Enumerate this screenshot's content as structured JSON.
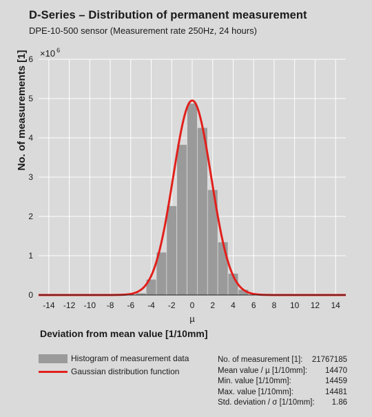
{
  "title": "D-Series – Distribution of permanent measurement",
  "subtitle": "DPE-10-500 sensor (Measurement rate 250Hz, 24 hours)",
  "chart_data": {
    "type": "bar",
    "title": "D-Series – Distribution of permanent measurement",
    "subtitle": "DPE-10-500 sensor (Measurement rate 250Hz, 24 hours)",
    "xlabel": "Deviation from mean value [1/10mm]",
    "xlabel_symbol": "µ",
    "ylabel": "No. of measurements [1]",
    "y_multiplier_base": "×10",
    "y_multiplier_exp": "6",
    "xlim": [
      -15,
      15
    ],
    "ylim": [
      0,
      6
    ],
    "x_ticks": [
      "-14",
      "-12",
      "-10",
      "-8",
      "-6",
      "-4",
      "-2",
      "0",
      "2",
      "4",
      "6",
      "8",
      "10",
      "12",
      "14"
    ],
    "y_ticks": [
      "0",
      "1",
      "2",
      "3",
      "4",
      "5",
      "6"
    ],
    "grid": true,
    "bin_width": 1,
    "bins": [
      -5,
      -4,
      -3,
      -2,
      -1,
      0,
      1,
      2,
      3,
      4,
      5
    ],
    "histogram_values": [
      0.05,
      0.4,
      1.09,
      2.27,
      3.83,
      4.88,
      4.26,
      2.68,
      1.35,
      0.55,
      0.14
    ],
    "gaussian": {
      "mean": 0,
      "sigma": 1.86,
      "peak": 4.95
    },
    "series": [
      {
        "name": "Histogram of measurement data",
        "type": "bar",
        "color": "#9a9a9a"
      },
      {
        "name": "Gaussian distribution function",
        "type": "line",
        "color": "#e1201c"
      }
    ]
  },
  "stats": [
    {
      "label": "No. of measurement [1]:",
      "value": "21767185"
    },
    {
      "label": "Mean value / µ [1/10mm]:",
      "value": "14470"
    },
    {
      "label": "Min. value [1/10mm]:",
      "value": "14459"
    },
    {
      "label": "Max. value [1/10mm]:",
      "value": "14481"
    },
    {
      "label": "Std. deviation / σ [1/10mm]:",
      "value": "1.86"
    }
  ]
}
